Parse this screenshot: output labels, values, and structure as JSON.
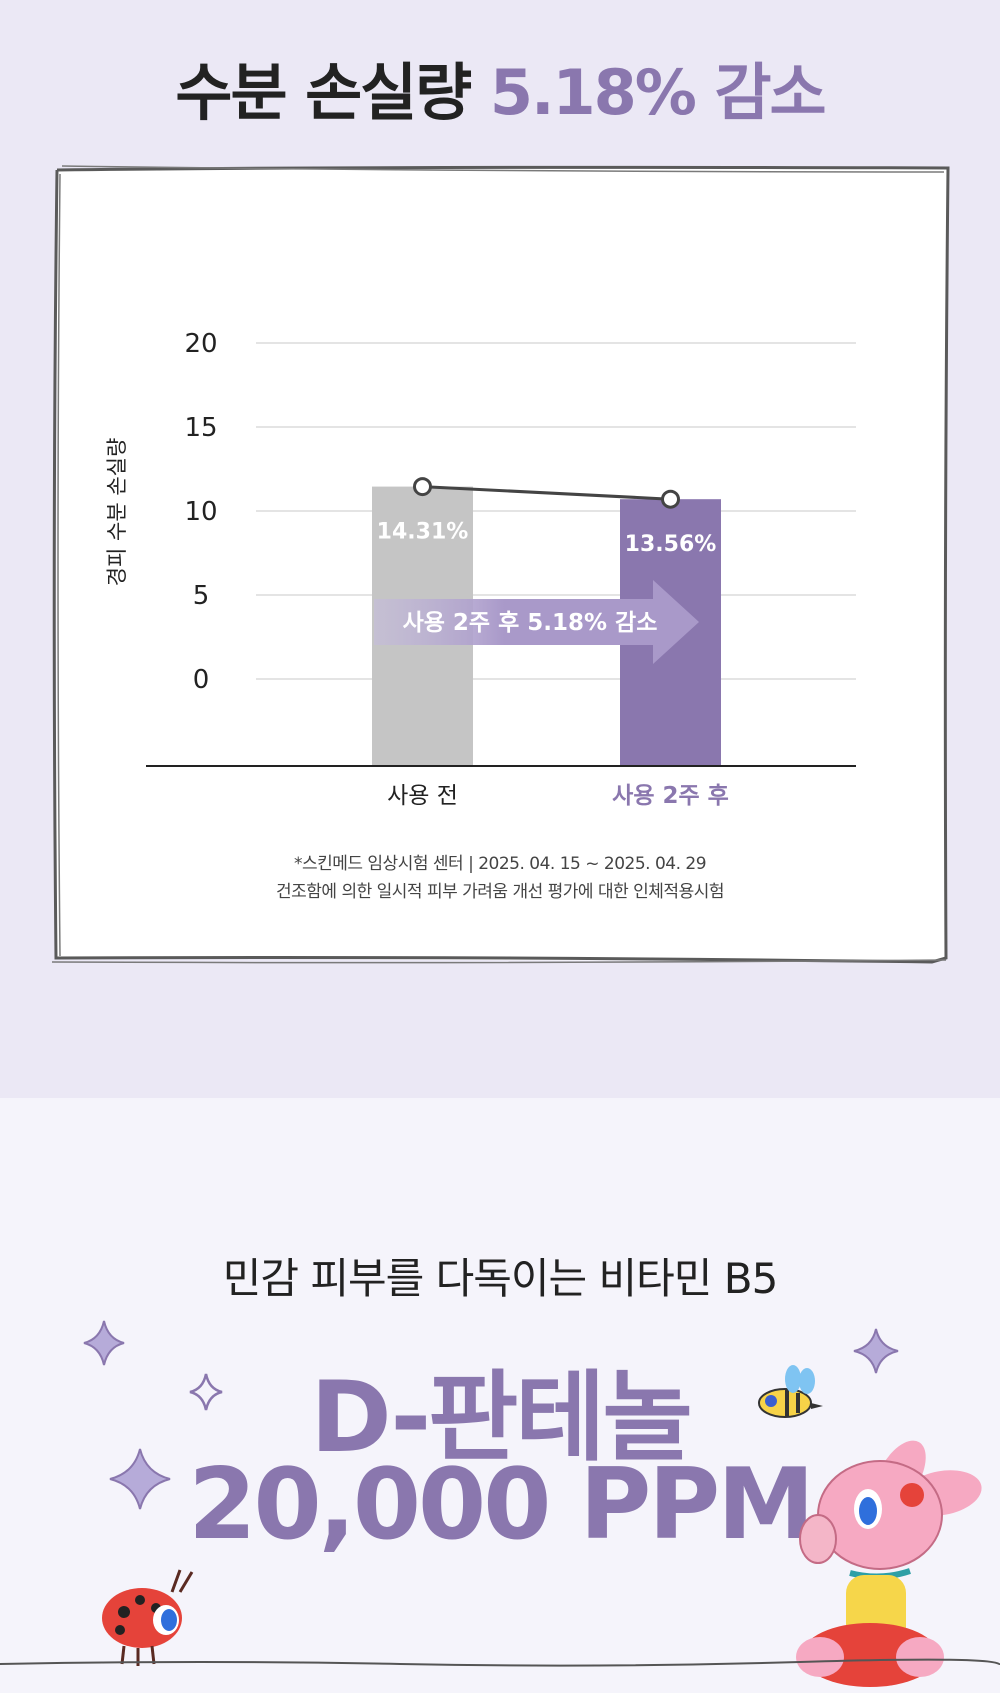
{
  "headline": {
    "prefix": "수분 손실량",
    "accent": "5.18% 감소"
  },
  "chart_data": {
    "type": "bar",
    "ylabel": "경피 수분 손실량",
    "yticks": [
      "20",
      "15",
      "10",
      "5",
      "0"
    ],
    "categories": [
      "사용 전",
      "사용 2주 후"
    ],
    "values": [
      14.31,
      13.56
    ],
    "value_labels": [
      "14.31%",
      "13.56%"
    ],
    "bar_colors": [
      "#c5c5c5",
      "#8a77ae"
    ],
    "arrow_label": "사용 2주 후 5.18% 감소",
    "grid": true
  },
  "footnote": {
    "line1": "*스킨메드 임상시험 센터 | 2025. 04. 15 ~ 2025. 04. 29",
    "line2": "건조함에 의한 일시적 피부 가려움 개선 평가에 대한 인체적용시험"
  },
  "promo": {
    "subtitle": "민감 피부를 다독이는 비타민 B5",
    "title_line1": "D-판테놀",
    "title_line2": "20,000 PPM"
  },
  "colors": {
    "accent": "#8a77ae",
    "bg_top": "#ebe8f5",
    "bg_bottom": "#f5f4fb"
  }
}
